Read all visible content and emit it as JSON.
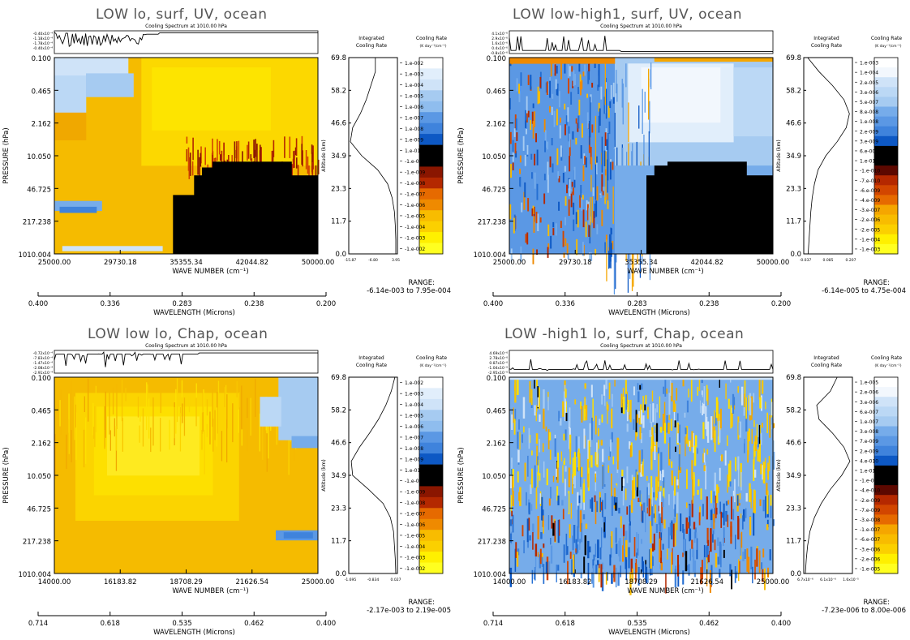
{
  "chart_data": [
    {
      "type": "heatmap",
      "title": "LOW lo, surf, UV, ocean",
      "subtitle": "Cooling Spectrum at 1010.00 hPa",
      "spectrum_ticks": [
        "-0.40x10⁻⁴",
        "-1.18x10⁻⁴",
        "-1.78x10⁻⁴",
        "-0.40x10⁻⁴"
      ],
      "x_ticks": [
        "25000.00",
        "29730.18",
        "35355.34",
        "42044.82",
        "50000.00"
      ],
      "xlabel": "WAVE NUMBER (cm⁻¹)",
      "wl_ticks": [
        "0.400",
        "0.336",
        "0.283",
        "0.238",
        "0.200"
      ],
      "wl_label": "WAVELENGTH (Microns)",
      "y_ticks": [
        "0.100",
        "0.465",
        "2.162",
        "10.050",
        "46.725",
        "217.238",
        "1010.004"
      ],
      "ylabel": "PRESSURE (hPa)",
      "alt_ticks": [
        "69.8",
        "58.2",
        "46.6",
        "34.9",
        "23.3",
        "11.7",
        "0.0"
      ],
      "alt_label": "Altitude (km)",
      "int_title": [
        "Integrated",
        "Cooling Rate"
      ],
      "int_ticks": [
        "-15.87",
        "-6.80",
        "3.95"
      ],
      "int_profile": [
        0.55,
        0.55,
        0.45,
        0.35,
        0.22,
        0.05,
        0.0,
        0.25,
        0.6,
        0.82,
        0.92,
        0.97,
        0.99,
        1.0,
        1.0
      ],
      "cb_title": [
        "Cooling Rate",
        "(K day⁻¹/cm⁻¹)"
      ],
      "cb_labels": [
        "1.e-002",
        "1.e-003",
        "1.e-004",
        "1.e-005",
        "1.e-006",
        "1.e-007",
        "1.e-008",
        "1.e-009",
        "1.e-010",
        "-1.e-010",
        "-1.e-009",
        "-1.e-008",
        "-1.e-007",
        "-1.e-006",
        "-1.e-005",
        "-1.e-004",
        "-1.e-003",
        "-1.e-002"
      ],
      "range_label": "RANGE:",
      "range": "-6.14e-003 to 7.95e-004"
    },
    {
      "type": "heatmap",
      "title": "LOW low-high1, surf, UV, ocean",
      "subtitle": "Cooling Spectrum at 1010.00 hPa",
      "spectrum_ticks": [
        "4.1x10⁻⁶",
        "2.9x10⁻⁶",
        "1.6x10⁻⁶",
        "0.4x10⁻⁶",
        "-0.8x10⁻⁶"
      ],
      "x_ticks": [
        "25000.00",
        "29730.18",
        "35355.34",
        "42044.82",
        "50000.00"
      ],
      "xlabel": "WAVE NUMBER (cm⁻¹)",
      "wl_ticks": [
        "0.400",
        "0.336",
        "0.283",
        "0.238",
        "0.200"
      ],
      "wl_label": "WAVELENGTH (Microns)",
      "y_ticks": [
        "0.100",
        "0.465",
        "2.162",
        "10.050",
        "46.725",
        "217.238",
        "1010.004"
      ],
      "ylabel": "PRESSURE (hPa)",
      "alt_ticks": [
        "69.8",
        "58.2",
        "46.6",
        "34.9",
        "23.3",
        "11.7",
        "0.0"
      ],
      "alt_label": "Altitude (km)",
      "int_title": [
        "Integrated",
        "Cooling Rate"
      ],
      "int_ticks": [
        "-0.037",
        "0.085",
        "0.207"
      ],
      "int_profile": [
        0.05,
        0.3,
        0.6,
        0.85,
        0.97,
        0.9,
        0.7,
        0.45,
        0.28,
        0.2,
        0.15,
        0.12,
        0.1,
        0.08,
        0.06
      ],
      "cb_title": [
        "Cooling Rate",
        "(K day⁻¹/cm⁻¹)"
      ],
      "cb_labels": [
        "1.e-003",
        "1.e-004",
        "2.e-005",
        "3.e-006",
        "5.e-007",
        "8.e-008",
        "1.e-008",
        "2.e-009",
        "3.e-009",
        "6.e-009",
        "1.e-010",
        "-1.e-010",
        "-7.e-010",
        "-6.e-009",
        "-4.e-009",
        "-3.e-007",
        "-2.e-006",
        "-2.e-005",
        "-1.e-004",
        "-1.e-003"
      ],
      "range_label": "RANGE:",
      "range": "-6.14e-005 to 4.75e-004"
    },
    {
      "type": "heatmap",
      "title": "LOW low lo, Chap, ocean",
      "subtitle": "Cooling Spectrum at 1010.00 hPa",
      "spectrum_ticks": [
        "-0.72x10⁻⁴",
        "-7.83x10⁻⁴",
        "-1.47x10⁻⁴",
        "-2.08x10⁻⁴",
        "-2.91x10⁻⁴"
      ],
      "x_ticks": [
        "14000.00",
        "16183.82",
        "18708.29",
        "21626.54",
        "25000.00"
      ],
      "xlabel": "WAVE NUMBER (cm⁻¹)",
      "wl_ticks": [
        "0.714",
        "0.618",
        "0.535",
        "0.462",
        "0.400"
      ],
      "wl_label": "WAVELENGTH (Microns)",
      "y_ticks": [
        "0.100",
        "0.465",
        "2.162",
        "10.050",
        "46.725",
        "217.238",
        "1010.004"
      ],
      "ylabel": "PRESSURE (hPa)",
      "alt_ticks": [
        "69.8",
        "58.2",
        "46.6",
        "34.9",
        "23.3",
        "11.7",
        "0.0"
      ],
      "alt_label": "Altitude (km)",
      "int_title": [
        "Integrated",
        "Cooling Rate"
      ],
      "int_ticks": [
        "-1.695",
        "-0.834",
        "0.027"
      ],
      "int_profile": [
        0.98,
        0.9,
        0.78,
        0.62,
        0.42,
        0.2,
        0.02,
        0.05,
        0.4,
        0.72,
        0.88,
        0.95,
        0.97,
        0.99,
        1.0
      ],
      "cb_title": [
        "Cooling Rate",
        "(K day⁻¹/cm⁻¹)"
      ],
      "cb_labels": [
        "1.e-002",
        "1.e-003",
        "1.e-004",
        "1.e-005",
        "1.e-006",
        "1.e-007",
        "1.e-008",
        "1.e-009",
        "1.e-010",
        "-1.e-010",
        "-1.e-009",
        "-1.e-008",
        "-1.e-007",
        "-1.e-006",
        "-1.e-005",
        "-1.e-004",
        "-1.e-003",
        "-1.e-002"
      ],
      "range_label": "RANGE:",
      "range": "-2.17e-003 to 2.19e-005"
    },
    {
      "type": "heatmap",
      "title": "LOW -high1 lo, surf, Chap, ocean",
      "subtitle": "Cooling Spectrum at 1010.00 hPa",
      "spectrum_ticks": [
        "4.69x10⁻⁶",
        "2.78x10⁻⁶",
        "0.87x10⁻⁶",
        "-1.04x10⁻⁶",
        "-2.95x10⁻⁶"
      ],
      "x_ticks": [
        "14000.00",
        "16183.82",
        "18708.29",
        "21626.54",
        "25000.00"
      ],
      "xlabel": "WAVE NUMBER (cm⁻¹)",
      "wl_ticks": [
        "0.714",
        "0.618",
        "0.535",
        "0.462",
        "0.400"
      ],
      "wl_label": "WAVELENGTH (Microns)",
      "y_ticks": [
        "0.100",
        "0.465",
        "2.162",
        "10.050",
        "46.725",
        "217.238",
        "1010.004"
      ],
      "ylabel": "PRESSURE (hPa)",
      "alt_ticks": [
        "69.8",
        "58.2",
        "46.6",
        "34.9",
        "23.3",
        "11.7",
        "0.0"
      ],
      "alt_label": "Altitude (km)",
      "int_title": [
        "Integrated",
        "Cooling Rate"
      ],
      "int_ticks": [
        "6.7x10⁻⁶",
        "6.1x10⁻⁶",
        "1.6x10⁻⁵"
      ],
      "int_profile": [
        0.7,
        0.55,
        0.25,
        0.3,
        0.6,
        0.85,
        0.98,
        0.8,
        0.55,
        0.35,
        0.2,
        0.1,
        0.05,
        0.02,
        0.0
      ],
      "cb_title": [
        "Cooling Rate",
        "(K day⁻¹/cm⁻¹)"
      ],
      "cb_labels": [
        "1.e-005",
        "2.e-006",
        "3.e-006",
        "6.e-007",
        "1.e-007",
        "3.e-008",
        "7.e-009",
        "2.e-009",
        "4.e-010",
        "1.e-010",
        "-1.e-010",
        "-4.e-010",
        "-2.e-009",
        "-7.e-009",
        "-3.e-008",
        "-1.e-007",
        "-6.e-007",
        "-3.e-006",
        "-2.e-006",
        "-1.e-005"
      ],
      "range_label": "RANGE:",
      "range": "-7.23e-006 to 8.00e-006"
    }
  ],
  "palette": {
    "positive": [
      "#ffffff",
      "#f2f7fd",
      "#e1eefb",
      "#cfe3f8",
      "#bbd8f5",
      "#a6cbf1",
      "#8fbdee",
      "#76acea",
      "#5b98e4",
      "#3f83dc",
      "#246ed2",
      "#0d58c4",
      "#083f9a",
      "#000000"
    ],
    "negative": [
      "#000000",
      "#5c0800",
      "#8a1600",
      "#b42800",
      "#d24600",
      "#e66a00",
      "#ef8a00",
      "#f5a600",
      "#f8bc00",
      "#fbd000",
      "#fde200",
      "#fff000",
      "#ffff20"
    ],
    "frame": "#000000"
  }
}
